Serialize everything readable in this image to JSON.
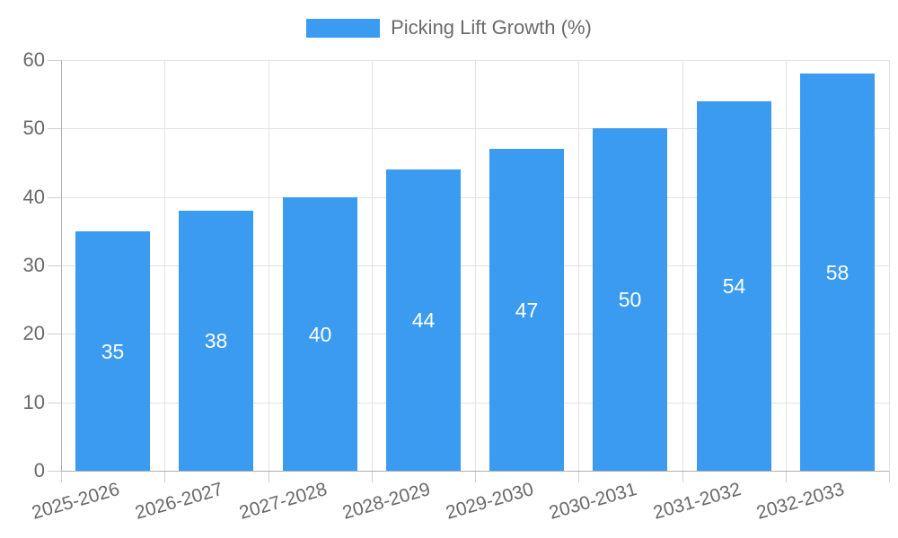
{
  "legend": {
    "label": "Picking Lift Growth (%)"
  },
  "colors": {
    "bar": "#3B9BF1",
    "grid": "#e3e3e3",
    "axis": "#b0b0b0",
    "tick": "#cfcfcf",
    "text": "#6a6a6a",
    "value_label": "#ffffff",
    "background": "#ffffff"
  },
  "chart_data": {
    "type": "bar",
    "title": "",
    "categories": [
      "2025-2026",
      "2026-2027",
      "2027-2028",
      "2028-2029",
      "2029-2030",
      "2030-2031",
      "2031-2032",
      "2032-2033"
    ],
    "series": [
      {
        "name": "Picking Lift Growth (%)",
        "values": [
          35,
          38,
          40,
          44,
          47,
          50,
          54,
          58
        ]
      }
    ],
    "values": [
      35,
      38,
      40,
      44,
      47,
      50,
      54,
      58
    ],
    "value_labels_shown": true,
    "value_label_position": "inside-center",
    "xlabel": "",
    "ylabel": "",
    "ylim": [
      0,
      60
    ],
    "yticks": [
      0,
      10,
      20,
      30,
      40,
      50,
      60
    ],
    "grid": true,
    "legend_position": "top",
    "x_tick_rotation_deg": -16
  }
}
